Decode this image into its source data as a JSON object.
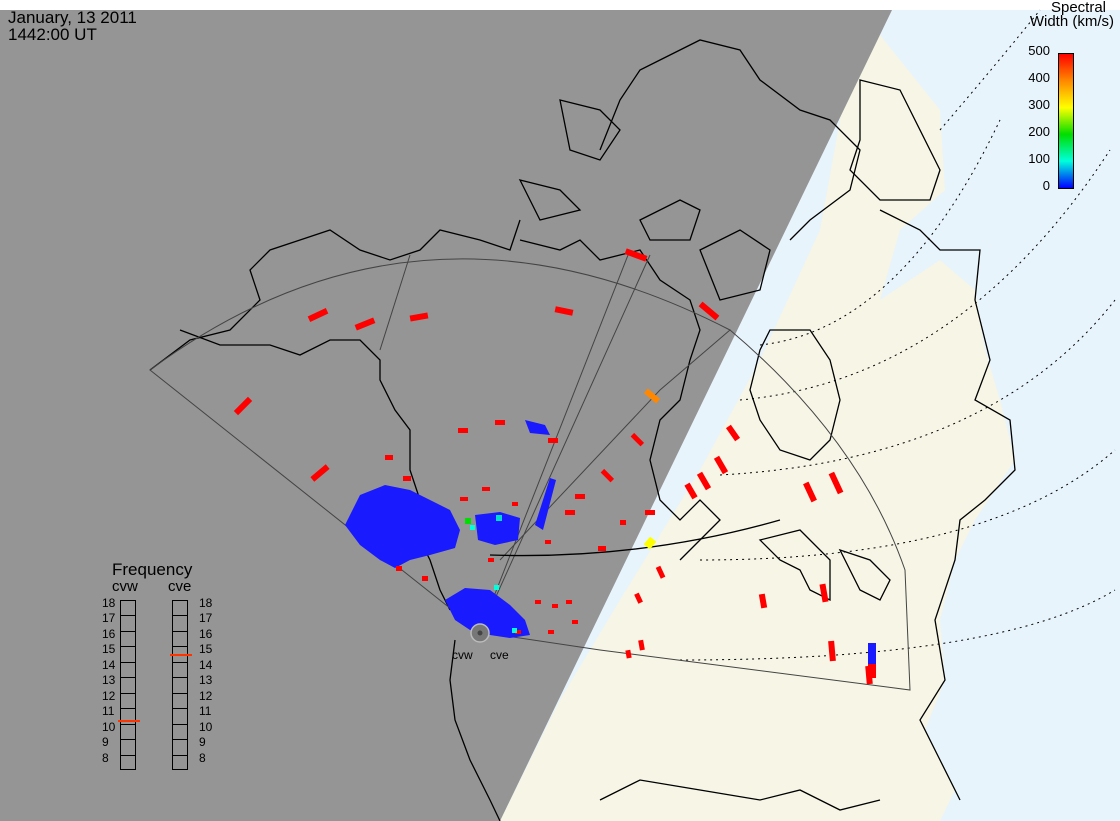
{
  "header": {
    "date": "January, 13 2011",
    "time": "1442:00 UT"
  },
  "legend": {
    "title_line1": "Spectral",
    "title_line2": "Width (km/s)",
    "ticks": [
      "500",
      "400",
      "300",
      "200",
      "100",
      "0"
    ],
    "gradient_colors": [
      "#ff0000",
      "#ff8800",
      "#ffff00",
      "#00dd00",
      "#00ffdd",
      "#0000ff"
    ]
  },
  "frequency": {
    "title": "Frequency",
    "radars": [
      {
        "name": "cvw",
        "value": 10.8,
        "color": "#ff3300"
      },
      {
        "name": "cve",
        "value": 15.1,
        "color": "#ff3300"
      }
    ],
    "scale": [
      "18",
      "17",
      "16",
      "15",
      "14",
      "13",
      "12",
      "11",
      "10",
      "9",
      "8"
    ]
  },
  "radar_sites": {
    "west": "cvw",
    "east": "cve"
  },
  "colors": {
    "night": "#959595",
    "day_land": "#f6f5e6",
    "ocean_day": "#e8f4fc",
    "low_width": "#1a1aff",
    "high_width": "#ff0000"
  }
}
